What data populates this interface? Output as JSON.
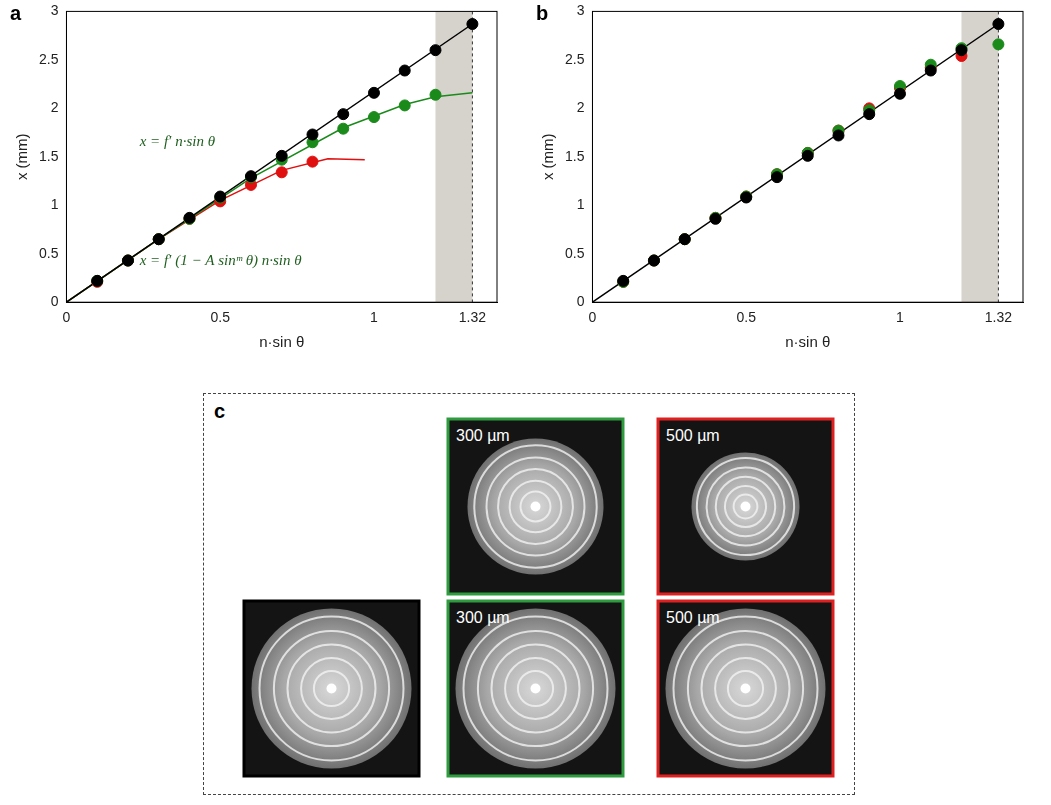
{
  "chart_data": [
    {
      "type": "scatter",
      "panel_letter": "a",
      "x_label": "n·sin θ",
      "y_label": "x (mm)",
      "xlim": [
        0,
        1.4
      ],
      "ylim": [
        0,
        3
      ],
      "xticks": [
        0,
        0.5,
        1,
        1.32
      ],
      "yticks": [
        0,
        0.5,
        1,
        1.5,
        2,
        2.5,
        3
      ],
      "grid": false,
      "shaded_region": [
        1.2,
        1.32
      ],
      "annotations": [
        {
          "text": "x = f′ n·sin θ",
          "color": "#1f5f1f"
        },
        {
          "text": "x = f′ (1 − A sinᵐ θ) n·sin θ",
          "color": "#1f5f1f"
        }
      ],
      "series": [
        {
          "type": "line",
          "color": "#000000",
          "marker": "none",
          "line_style": "solid",
          "x": [
            0,
            1.32
          ],
          "values": [
            0,
            2.87
          ]
        },
        {
          "type": "line",
          "color": "#1a8a1a",
          "marker": "none",
          "line_style": "solid",
          "x": [
            0,
            0.3,
            0.6,
            0.9,
            1.1,
            1.2,
            1.32
          ],
          "values": [
            0,
            0.65,
            1.28,
            1.8,
            2.04,
            2.12,
            2.16
          ]
        },
        {
          "type": "line",
          "color": "#e01010",
          "marker": "none",
          "line_style": "solid",
          "x": [
            0,
            0.3,
            0.5,
            0.7,
            0.85,
            0.97
          ],
          "values": [
            0,
            0.65,
            1.05,
            1.36,
            1.48,
            1.47
          ]
        },
        {
          "type": "scatter",
          "color": "#000000",
          "marker": "circle",
          "x": [
            0.1,
            0.2,
            0.3,
            0.4,
            0.5,
            0.6,
            0.7,
            0.8,
            0.9,
            1.0,
            1.1,
            1.2,
            1.32
          ],
          "values": [
            0.22,
            0.43,
            0.65,
            0.87,
            1.09,
            1.3,
            1.51,
            1.73,
            1.94,
            2.16,
            2.39,
            2.6,
            2.87
          ]
        },
        {
          "type": "scatter",
          "color": "#1a8a1a",
          "marker": "circle",
          "x": [
            0.1,
            0.2,
            0.3,
            0.4,
            0.5,
            0.6,
            0.7,
            0.8,
            0.9,
            1.0,
            1.1,
            1.2
          ],
          "values": [
            0.22,
            0.43,
            0.65,
            0.86,
            1.08,
            1.29,
            1.47,
            1.65,
            1.79,
            1.91,
            2.03,
            2.14
          ]
        },
        {
          "type": "scatter",
          "color": "#e01010",
          "marker": "circle",
          "x": [
            0.1,
            0.2,
            0.3,
            0.4,
            0.5,
            0.6,
            0.7,
            0.8
          ],
          "values": [
            0.21,
            0.43,
            0.65,
            0.86,
            1.04,
            1.21,
            1.34,
            1.45
          ]
        }
      ]
    },
    {
      "type": "scatter",
      "panel_letter": "b",
      "x_label": "n·sin θ",
      "y_label": "x (mm)",
      "xlim": [
        0,
        1.4
      ],
      "ylim": [
        0,
        3
      ],
      "xticks": [
        0,
        0.5,
        1,
        1.32
      ],
      "yticks": [
        0,
        0.5,
        1,
        1.5,
        2,
        2.5,
        3
      ],
      "grid": false,
      "shaded_region": [
        1.2,
        1.32
      ],
      "annotations": [],
      "series": [
        {
          "type": "line",
          "color": "#000000",
          "marker": "none",
          "line_style": "solid",
          "x": [
            0,
            1.32
          ],
          "values": [
            0,
            2.87
          ]
        },
        {
          "type": "scatter",
          "color": "#000000",
          "marker": "circle",
          "x": [
            0.1,
            0.2,
            0.3,
            0.4,
            0.5,
            0.6,
            0.7,
            0.8,
            0.9,
            1.0,
            1.1,
            1.2,
            1.32
          ],
          "values": [
            0.22,
            0.43,
            0.65,
            0.86,
            1.08,
            1.29,
            1.51,
            1.72,
            1.94,
            2.15,
            2.39,
            2.6,
            2.87
          ]
        },
        {
          "type": "scatter",
          "color": "#1a8a1a",
          "marker": "circle",
          "x": [
            0.1,
            0.2,
            0.3,
            0.4,
            0.5,
            0.6,
            0.7,
            0.8,
            0.9,
            1.0,
            1.1,
            1.2,
            1.32
          ],
          "values": [
            0.21,
            0.43,
            0.65,
            0.87,
            1.09,
            1.32,
            1.54,
            1.77,
            1.98,
            2.23,
            2.45,
            2.62,
            2.66
          ]
        },
        {
          "type": "scatter",
          "color": "#e01010",
          "marker": "circle",
          "x": [
            0.1,
            0.2,
            0.3,
            0.4,
            0.5,
            0.6,
            0.7,
            0.8,
            0.9,
            1.0,
            1.1,
            1.2
          ],
          "values": [
            0.21,
            0.43,
            0.65,
            0.87,
            1.09,
            1.32,
            1.54,
            1.77,
            2.0,
            2.21,
            2.42,
            2.54
          ]
        }
      ]
    }
  ],
  "panel_c": {
    "panel_letter": "c",
    "images": [
      {
        "color": "#000000"
      },
      {
        "color": "#2e9b3e",
        "label": "300 µm"
      },
      {
        "color": "#e02020",
        "label": "500 µm"
      },
      {
        "color": "#2e9b3e",
        "label": "300 µm"
      },
      {
        "color": "#e02020",
        "label": "500 µm"
      }
    ]
  }
}
